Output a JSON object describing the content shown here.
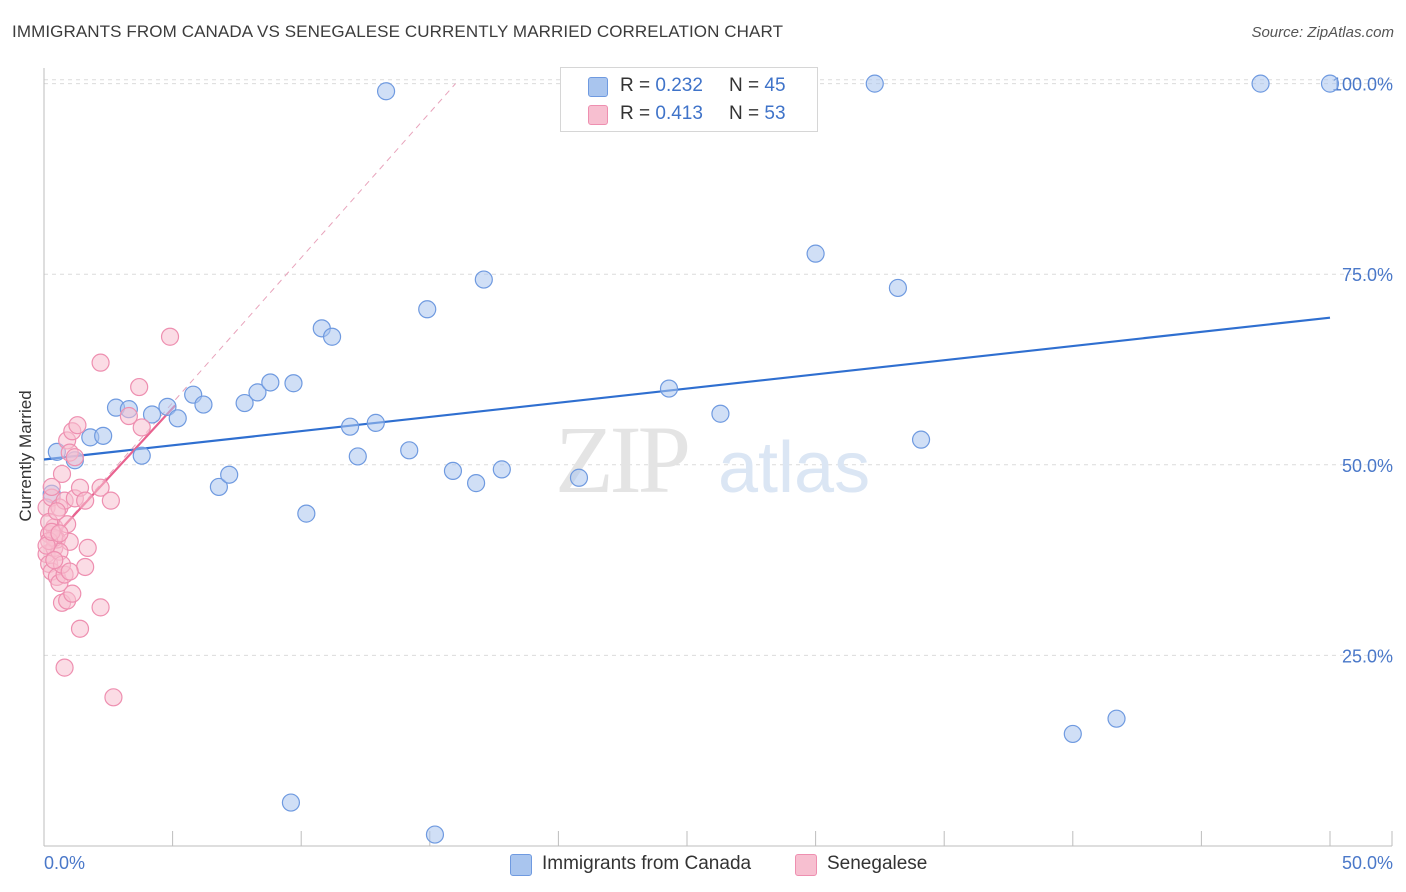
{
  "title": "IMMIGRANTS FROM CANADA VS SENEGALESE CURRENTLY MARRIED CORRELATION CHART",
  "source": "Source: ZipAtlas.com",
  "watermark": {
    "zip": "ZIP",
    "atlas": "atlas"
  },
  "legend": {
    "items": [
      {
        "r_label": "R =",
        "r_value": "0.232",
        "n_label": "N =",
        "n_value": "45",
        "color": "#a9c5ee",
        "border": "#6f9ae0"
      },
      {
        "r_label": "R =",
        "r_value": "0.413",
        "n_label": "N =",
        "n_value": "53",
        "color": "#f7bfd0",
        "border": "#ee8fb0"
      }
    ]
  },
  "bottom_legend": [
    {
      "label": "Immigrants from Canada",
      "color": "#a9c5ee",
      "border": "#6f9ae0"
    },
    {
      "label": "Senegalese",
      "color": "#f7bfd0",
      "border": "#ee8fb0"
    }
  ],
  "chart_data": {
    "type": "scatter",
    "title": "IMMIGRANTS FROM CANADA VS SENEGALESE CURRENTLY MARRIED CORRELATION CHART",
    "xlabel": "",
    "ylabel": "Currently Married",
    "xlim": [
      0,
      50
    ],
    "ylim": [
      0,
      101
    ],
    "x_tick_labels": [
      "0.0%",
      "50.0%"
    ],
    "y_ticks": [
      25,
      50,
      75,
      100
    ],
    "y_tick_labels": [
      "25.0%",
      "50.0%",
      "75.0%",
      "100.0%"
    ],
    "grid": true,
    "series": [
      {
        "name": "Immigrants from Canada",
        "color": "#6f9ae0",
        "fill": "#a9c5ee",
        "trend_color": "#2f6fd0",
        "trend": {
          "x": [
            0,
            50
          ],
          "y": [
            50.7,
            69.3
          ]
        },
        "points": [
          {
            "x": 0.5,
            "y": 51.7
          },
          {
            "x": 1.2,
            "y": 50.6
          },
          {
            "x": 1.8,
            "y": 53.6
          },
          {
            "x": 2.3,
            "y": 53.8
          },
          {
            "x": 2.8,
            "y": 57.5
          },
          {
            "x": 3.3,
            "y": 57.3
          },
          {
            "x": 3.8,
            "y": 51.2
          },
          {
            "x": 4.2,
            "y": 56.6
          },
          {
            "x": 4.8,
            "y": 57.6
          },
          {
            "x": 5.2,
            "y": 56.1
          },
          {
            "x": 5.8,
            "y": 59.2
          },
          {
            "x": 6.2,
            "y": 57.9
          },
          {
            "x": 6.8,
            "y": 47.1
          },
          {
            "x": 7.2,
            "y": 48.7
          },
          {
            "x": 7.8,
            "y": 58.1
          },
          {
            "x": 8.3,
            "y": 59.5
          },
          {
            "x": 8.8,
            "y": 60.8
          },
          {
            "x": 9.6,
            "y": 5.7
          },
          {
            "x": 9.7,
            "y": 60.7
          },
          {
            "x": 10.2,
            "y": 43.6
          },
          {
            "x": 10.8,
            "y": 67.9
          },
          {
            "x": 11.2,
            "y": 66.8
          },
          {
            "x": 11.9,
            "y": 55.0
          },
          {
            "x": 12.2,
            "y": 51.1
          },
          {
            "x": 12.9,
            "y": 55.5
          },
          {
            "x": 13.3,
            "y": 99.0
          },
          {
            "x": 14.2,
            "y": 51.9
          },
          {
            "x": 14.9,
            "y": 70.4
          },
          {
            "x": 15.2,
            "y": 1.5
          },
          {
            "x": 15.9,
            "y": 49.2
          },
          {
            "x": 16.8,
            "y": 47.6
          },
          {
            "x": 17.1,
            "y": 74.3
          },
          {
            "x": 17.8,
            "y": 49.4
          },
          {
            "x": 20.8,
            "y": 48.3
          },
          {
            "x": 24.3,
            "y": 60.0
          },
          {
            "x": 26.3,
            "y": 56.7
          },
          {
            "x": 30.0,
            "y": 77.7
          },
          {
            "x": 32.3,
            "y": 100.0
          },
          {
            "x": 33.2,
            "y": 73.2
          },
          {
            "x": 34.1,
            "y": 53.3
          },
          {
            "x": 40.0,
            "y": 14.7
          },
          {
            "x": 41.7,
            "y": 16.7
          },
          {
            "x": 47.3,
            "y": 100.0
          },
          {
            "x": 50.0,
            "y": 100.0
          },
          {
            "x": 0.3,
            "y": 46.2
          }
        ]
      },
      {
        "name": "Senegalese",
        "color": "#ee8fb0",
        "fill": "#f7bfd0",
        "trend_color": "#e8628f",
        "trend": {
          "x": [
            0,
            5.1
          ],
          "y": [
            39.1,
            57.8
          ]
        },
        "trend_dashed": {
          "x": [
            0,
            16
          ],
          "y": [
            39.1,
            100
          ]
        },
        "points": [
          {
            "x": 0.1,
            "y": 44.4
          },
          {
            "x": 0.1,
            "y": 38.3
          },
          {
            "x": 0.2,
            "y": 40.9
          },
          {
            "x": 0.2,
            "y": 37.0
          },
          {
            "x": 0.3,
            "y": 45.7
          },
          {
            "x": 0.3,
            "y": 36.0
          },
          {
            "x": 0.4,
            "y": 41.8
          },
          {
            "x": 0.4,
            "y": 39.1
          },
          {
            "x": 0.5,
            "y": 40.2
          },
          {
            "x": 0.5,
            "y": 35.3
          },
          {
            "x": 0.6,
            "y": 44.4
          },
          {
            "x": 0.6,
            "y": 34.5
          },
          {
            "x": 0.7,
            "y": 48.8
          },
          {
            "x": 0.7,
            "y": 31.9
          },
          {
            "x": 0.8,
            "y": 45.3
          },
          {
            "x": 0.8,
            "y": 35.6
          },
          {
            "x": 0.9,
            "y": 42.2
          },
          {
            "x": 0.9,
            "y": 32.2
          },
          {
            "x": 0.8,
            "y": 23.4
          },
          {
            "x": 0.9,
            "y": 53.2
          },
          {
            "x": 1.0,
            "y": 51.6
          },
          {
            "x": 1.0,
            "y": 39.9
          },
          {
            "x": 1.1,
            "y": 54.4
          },
          {
            "x": 1.1,
            "y": 33.1
          },
          {
            "x": 1.2,
            "y": 51.0
          },
          {
            "x": 1.2,
            "y": 45.6
          },
          {
            "x": 1.3,
            "y": 55.2
          },
          {
            "x": 1.4,
            "y": 28.5
          },
          {
            "x": 1.4,
            "y": 47.0
          },
          {
            "x": 1.6,
            "y": 45.3
          },
          {
            "x": 1.6,
            "y": 36.6
          },
          {
            "x": 1.7,
            "y": 39.1
          },
          {
            "x": 2.2,
            "y": 31.3
          },
          {
            "x": 2.2,
            "y": 47.0
          },
          {
            "x": 2.2,
            "y": 63.4
          },
          {
            "x": 2.6,
            "y": 45.3
          },
          {
            "x": 2.7,
            "y": 19.5
          },
          {
            "x": 3.3,
            "y": 56.4
          },
          {
            "x": 3.7,
            "y": 60.2
          },
          {
            "x": 3.8,
            "y": 54.9
          },
          {
            "x": 4.9,
            "y": 66.8
          },
          {
            "x": 0.2,
            "y": 42.5
          },
          {
            "x": 0.3,
            "y": 47.1
          },
          {
            "x": 0.4,
            "y": 40.4
          },
          {
            "x": 0.5,
            "y": 43.9
          },
          {
            "x": 0.6,
            "y": 38.6
          },
          {
            "x": 0.7,
            "y": 36.9
          },
          {
            "x": 0.2,
            "y": 40.0
          },
          {
            "x": 0.1,
            "y": 39.4
          },
          {
            "x": 0.3,
            "y": 41.2
          },
          {
            "x": 0.4,
            "y": 37.5
          },
          {
            "x": 1.0,
            "y": 36.0
          },
          {
            "x": 0.6,
            "y": 41.0
          }
        ]
      }
    ]
  }
}
